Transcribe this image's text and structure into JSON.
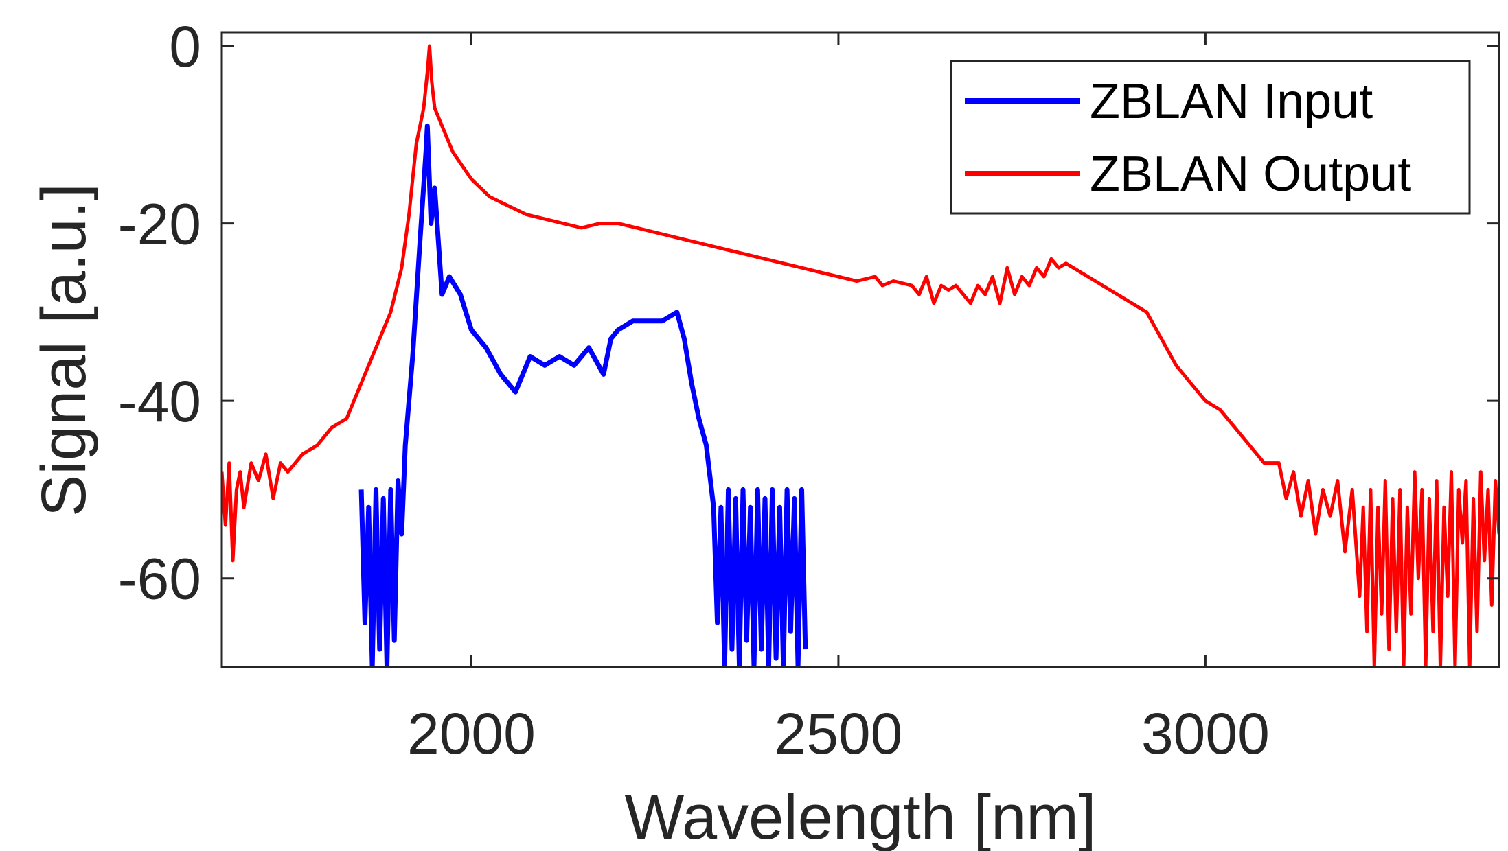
{
  "chart_data": {
    "type": "line",
    "title": "",
    "xlabel": "Wavelength [nm]",
    "ylabel": "Signal [a.u.]",
    "xlim": [
      1660,
      3400
    ],
    "ylim": [
      -70,
      2
    ],
    "xticks": [
      2000,
      2500,
      3000
    ],
    "yticks": [
      0,
      -20,
      -40,
      -60
    ],
    "grid": false,
    "legend_position": "top-right",
    "series": [
      {
        "name": "ZBLAN Input",
        "color": "#0000ff",
        "noise_floor": true,
        "points": [
          [
            1850,
            -50
          ],
          [
            1855,
            -65
          ],
          [
            1860,
            -52
          ],
          [
            1865,
            -70
          ],
          [
            1870,
            -50
          ],
          [
            1875,
            -68
          ],
          [
            1880,
            -51
          ],
          [
            1885,
            -70
          ],
          [
            1890,
            -50
          ],
          [
            1895,
            -67
          ],
          [
            1900,
            -49
          ],
          [
            1905,
            -55
          ],
          [
            1910,
            -45
          ],
          [
            1920,
            -35
          ],
          [
            1930,
            -22
          ],
          [
            1938,
            -12
          ],
          [
            1940,
            -9
          ],
          [
            1945,
            -20
          ],
          [
            1950,
            -16
          ],
          [
            1960,
            -28
          ],
          [
            1970,
            -26
          ],
          [
            1985,
            -28
          ],
          [
            2000,
            -32
          ],
          [
            2020,
            -34
          ],
          [
            2040,
            -37
          ],
          [
            2060,
            -39
          ],
          [
            2070,
            -37
          ],
          [
            2080,
            -35
          ],
          [
            2100,
            -36
          ],
          [
            2120,
            -35
          ],
          [
            2140,
            -36
          ],
          [
            2160,
            -34
          ],
          [
            2180,
            -37
          ],
          [
            2190,
            -33
          ],
          [
            2200,
            -32
          ],
          [
            2220,
            -31
          ],
          [
            2240,
            -31
          ],
          [
            2260,
            -31
          ],
          [
            2280,
            -30
          ],
          [
            2290,
            -33
          ],
          [
            2300,
            -38
          ],
          [
            2310,
            -42
          ],
          [
            2320,
            -45
          ],
          [
            2330,
            -52
          ],
          [
            2335,
            -65
          ],
          [
            2340,
            -52
          ],
          [
            2345,
            -70
          ],
          [
            2350,
            -50
          ],
          [
            2355,
            -68
          ],
          [
            2360,
            -51
          ],
          [
            2365,
            -70
          ],
          [
            2370,
            -50
          ],
          [
            2375,
            -67
          ],
          [
            2380,
            -52
          ],
          [
            2385,
            -70
          ],
          [
            2390,
            -50
          ],
          [
            2395,
            -68
          ],
          [
            2400,
            -51
          ],
          [
            2405,
            -70
          ],
          [
            2410,
            -50
          ],
          [
            2415,
            -69
          ],
          [
            2420,
            -52
          ],
          [
            2425,
            -70
          ],
          [
            2430,
            -50
          ],
          [
            2435,
            -66
          ],
          [
            2440,
            -51
          ],
          [
            2445,
            -70
          ],
          [
            2450,
            -50
          ],
          [
            2455,
            -68
          ]
        ]
      },
      {
        "name": "ZBLAN Output",
        "color": "#ff0000",
        "noise_floor": false,
        "points": [
          [
            1660,
            -48
          ],
          [
            1665,
            -54
          ],
          [
            1670,
            -47
          ],
          [
            1675,
            -58
          ],
          [
            1680,
            -50
          ],
          [
            1685,
            -48
          ],
          [
            1690,
            -52
          ],
          [
            1700,
            -47
          ],
          [
            1710,
            -49
          ],
          [
            1720,
            -46
          ],
          [
            1730,
            -51
          ],
          [
            1740,
            -47
          ],
          [
            1750,
            -48
          ],
          [
            1770,
            -46
          ],
          [
            1790,
            -45
          ],
          [
            1810,
            -43
          ],
          [
            1830,
            -42
          ],
          [
            1850,
            -38
          ],
          [
            1870,
            -34
          ],
          [
            1890,
            -30
          ],
          [
            1905,
            -25
          ],
          [
            1915,
            -19
          ],
          [
            1925,
            -11
          ],
          [
            1935,
            -7
          ],
          [
            1940,
            -3
          ],
          [
            1943,
            0
          ],
          [
            1946,
            -4
          ],
          [
            1950,
            -7
          ],
          [
            1960,
            -9
          ],
          [
            1975,
            -12
          ],
          [
            2000,
            -15
          ],
          [
            2025,
            -17
          ],
          [
            2050,
            -18
          ],
          [
            2075,
            -19
          ],
          [
            2100,
            -19.5
          ],
          [
            2125,
            -20
          ],
          [
            2150,
            -20.5
          ],
          [
            2175,
            -20
          ],
          [
            2200,
            -20
          ],
          [
            2225,
            -20.5
          ],
          [
            2250,
            -21
          ],
          [
            2275,
            -21.5
          ],
          [
            2300,
            -22
          ],
          [
            2325,
            -22.5
          ],
          [
            2350,
            -23
          ],
          [
            2375,
            -23.5
          ],
          [
            2400,
            -24
          ],
          [
            2425,
            -24.5
          ],
          [
            2450,
            -25
          ],
          [
            2475,
            -25.5
          ],
          [
            2500,
            -26
          ],
          [
            2525,
            -26.5
          ],
          [
            2550,
            -26
          ],
          [
            2560,
            -27
          ],
          [
            2575,
            -26.5
          ],
          [
            2600,
            -27
          ],
          [
            2610,
            -28
          ],
          [
            2620,
            -26
          ],
          [
            2630,
            -29
          ],
          [
            2640,
            -27
          ],
          [
            2650,
            -27.5
          ],
          [
            2660,
            -27
          ],
          [
            2670,
            -28
          ],
          [
            2680,
            -29
          ],
          [
            2690,
            -27
          ],
          [
            2700,
            -28
          ],
          [
            2710,
            -26
          ],
          [
            2720,
            -29
          ],
          [
            2730,
            -25
          ],
          [
            2740,
            -28
          ],
          [
            2750,
            -26
          ],
          [
            2760,
            -27
          ],
          [
            2770,
            -25
          ],
          [
            2780,
            -26
          ],
          [
            2790,
            -24
          ],
          [
            2800,
            -25
          ],
          [
            2810,
            -24.5
          ],
          [
            2820,
            -25
          ],
          [
            2840,
            -26
          ],
          [
            2860,
            -27
          ],
          [
            2880,
            -28
          ],
          [
            2900,
            -29
          ],
          [
            2920,
            -30
          ],
          [
            2940,
            -33
          ],
          [
            2960,
            -36
          ],
          [
            2980,
            -38
          ],
          [
            3000,
            -40
          ],
          [
            3020,
            -41
          ],
          [
            3040,
            -43
          ],
          [
            3060,
            -45
          ],
          [
            3080,
            -47
          ],
          [
            3100,
            -47
          ],
          [
            3110,
            -51
          ],
          [
            3120,
            -48
          ],
          [
            3130,
            -53
          ],
          [
            3140,
            -49
          ],
          [
            3150,
            -55
          ],
          [
            3160,
            -50
          ],
          [
            3170,
            -53
          ],
          [
            3180,
            -49
          ],
          [
            3190,
            -57
          ],
          [
            3200,
            -50
          ],
          [
            3210,
            -62
          ],
          [
            3215,
            -52
          ],
          [
            3220,
            -66
          ],
          [
            3225,
            -50
          ],
          [
            3230,
            -70
          ],
          [
            3235,
            -52
          ],
          [
            3240,
            -64
          ],
          [
            3245,
            -49
          ],
          [
            3250,
            -68
          ],
          [
            3255,
            -51
          ],
          [
            3260,
            -66
          ],
          [
            3265,
            -50
          ],
          [
            3270,
            -70
          ],
          [
            3275,
            -52
          ],
          [
            3280,
            -64
          ],
          [
            3285,
            -48
          ],
          [
            3290,
            -60
          ],
          [
            3295,
            -50
          ],
          [
            3300,
            -70
          ],
          [
            3305,
            -51
          ],
          [
            3310,
            -66
          ],
          [
            3315,
            -49
          ],
          [
            3320,
            -70
          ],
          [
            3325,
            -52
          ],
          [
            3330,
            -62
          ],
          [
            3335,
            -48
          ],
          [
            3340,
            -70
          ],
          [
            3345,
            -50
          ],
          [
            3350,
            -56
          ],
          [
            3355,
            -49
          ],
          [
            3360,
            -70
          ],
          [
            3365,
            -51
          ],
          [
            3370,
            -66
          ],
          [
            3375,
            -48
          ],
          [
            3380,
            -58
          ],
          [
            3385,
            -50
          ],
          [
            3390,
            -63
          ],
          [
            3395,
            -49
          ],
          [
            3400,
            -55
          ]
        ]
      }
    ]
  }
}
